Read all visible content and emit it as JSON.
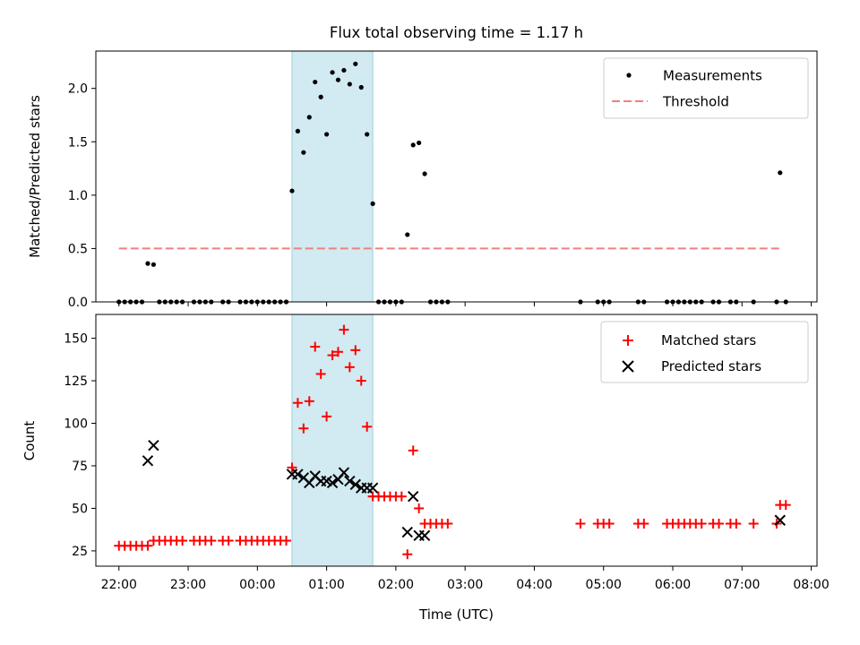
{
  "chart_data": [
    {
      "type": "scatter",
      "title": "Flux total observing time = 1.17 h",
      "ylabel": "Matched/Predicted stars",
      "xlim": [
        "21:40",
        "08:05"
      ],
      "ylim": [
        0,
        2.35
      ],
      "yticks": [
        "0.0",
        "0.5",
        "1.0",
        "1.5",
        "2.0"
      ],
      "shaded_span": {
        "start": "00:30",
        "end": "01:40",
        "color": "#add8e6"
      },
      "legend": {
        "position": "top-right",
        "entries": [
          "Measurements",
          "Threshold"
        ]
      },
      "threshold": {
        "name": "Threshold",
        "y": 0.5,
        "x_start": "22:00",
        "x_end": "07:35",
        "color": "#f08080"
      },
      "series": [
        {
          "name": "Measurements",
          "color": "#000000",
          "points": [
            [
              "22:00",
              0
            ],
            [
              "22:05",
              0
            ],
            [
              "22:10",
              0
            ],
            [
              "22:15",
              0
            ],
            [
              "22:20",
              0
            ],
            [
              "22:25",
              0.36
            ],
            [
              "22:30",
              0.35
            ],
            [
              "22:35",
              0
            ],
            [
              "22:40",
              0
            ],
            [
              "22:45",
              0
            ],
            [
              "22:50",
              0
            ],
            [
              "22:55",
              0
            ],
            [
              "23:05",
              0
            ],
            [
              "23:10",
              0
            ],
            [
              "23:15",
              0
            ],
            [
              "23:20",
              0
            ],
            [
              "23:30",
              0
            ],
            [
              "23:35",
              0
            ],
            [
              "23:45",
              0
            ],
            [
              "23:50",
              0
            ],
            [
              "23:55",
              0
            ],
            [
              "00:00",
              0
            ],
            [
              "00:05",
              0
            ],
            [
              "00:10",
              0
            ],
            [
              "00:15",
              0
            ],
            [
              "00:20",
              0
            ],
            [
              "00:25",
              0
            ],
            [
              "00:30",
              1.04
            ],
            [
              "00:35",
              1.6
            ],
            [
              "00:40",
              1.4
            ],
            [
              "00:45",
              1.73
            ],
            [
              "00:50",
              2.06
            ],
            [
              "00:55",
              1.92
            ],
            [
              "01:00",
              1.57
            ],
            [
              "01:05",
              2.15
            ],
            [
              "01:10",
              2.08
            ],
            [
              "01:15",
              2.17
            ],
            [
              "01:20",
              2.04
            ],
            [
              "01:25",
              2.23
            ],
            [
              "01:30",
              2.01
            ],
            [
              "01:35",
              1.57
            ],
            [
              "01:40",
              0.92
            ],
            [
              "01:45",
              0
            ],
            [
              "01:50",
              0
            ],
            [
              "01:55",
              0
            ],
            [
              "02:00",
              0
            ],
            [
              "02:05",
              0
            ],
            [
              "02:10",
              0.63
            ],
            [
              "02:15",
              1.47
            ],
            [
              "02:20",
              1.49
            ],
            [
              "02:25",
              1.2
            ],
            [
              "02:30",
              0
            ],
            [
              "02:35",
              0
            ],
            [
              "02:40",
              0
            ],
            [
              "02:45",
              0
            ],
            [
              "04:40",
              0
            ],
            [
              "04:55",
              0
            ],
            [
              "05:00",
              0
            ],
            [
              "05:05",
              0
            ],
            [
              "05:30",
              0
            ],
            [
              "05:35",
              0
            ],
            [
              "05:55",
              0
            ],
            [
              "06:00",
              0
            ],
            [
              "06:05",
              0
            ],
            [
              "06:10",
              0
            ],
            [
              "06:15",
              0
            ],
            [
              "06:20",
              0
            ],
            [
              "06:25",
              0
            ],
            [
              "06:35",
              0
            ],
            [
              "06:40",
              0
            ],
            [
              "06:50",
              0
            ],
            [
              "06:55",
              0
            ],
            [
              "07:10",
              0
            ],
            [
              "07:30",
              0
            ],
            [
              "07:33",
              1.21
            ],
            [
              "07:38",
              0
            ]
          ]
        }
      ]
    },
    {
      "type": "scatter",
      "xlabel": "Time (UTC)",
      "ylabel": "Count",
      "xlim": [
        "21:40",
        "08:05"
      ],
      "ylim": [
        16,
        164
      ],
      "xticks": [
        "22:00",
        "23:00",
        "00:00",
        "01:00",
        "02:00",
        "03:00",
        "04:00",
        "05:00",
        "06:00",
        "07:00",
        "08:00"
      ],
      "yticks": [
        "25",
        "50",
        "75",
        "100",
        "125",
        "150"
      ],
      "shaded_span": {
        "start": "00:30",
        "end": "01:40",
        "color": "#add8e6"
      },
      "legend": {
        "position": "top-right",
        "entries": [
          "Matched stars",
          "Predicted stars"
        ]
      },
      "series": [
        {
          "name": "Matched stars",
          "marker": "+",
          "color": "#ff0000",
          "points": [
            [
              "22:00",
              28
            ],
            [
              "22:05",
              28
            ],
            [
              "22:10",
              28
            ],
            [
              "22:15",
              28
            ],
            [
              "22:20",
              28
            ],
            [
              "22:25",
              28
            ],
            [
              "22:30",
              31
            ],
            [
              "22:35",
              31
            ],
            [
              "22:40",
              31
            ],
            [
              "22:45",
              31
            ],
            [
              "22:50",
              31
            ],
            [
              "22:55",
              31
            ],
            [
              "23:05",
              31
            ],
            [
              "23:10",
              31
            ],
            [
              "23:15",
              31
            ],
            [
              "23:20",
              31
            ],
            [
              "23:30",
              31
            ],
            [
              "23:35",
              31
            ],
            [
              "23:45",
              31
            ],
            [
              "23:50",
              31
            ],
            [
              "23:55",
              31
            ],
            [
              "00:00",
              31
            ],
            [
              "00:05",
              31
            ],
            [
              "00:10",
              31
            ],
            [
              "00:15",
              31
            ],
            [
              "00:20",
              31
            ],
            [
              "00:25",
              31
            ],
            [
              "00:30",
              74
            ],
            [
              "00:35",
              112
            ],
            [
              "00:40",
              97
            ],
            [
              "00:45",
              113
            ],
            [
              "00:50",
              145
            ],
            [
              "00:55",
              129
            ],
            [
              "01:00",
              104
            ],
            [
              "01:05",
              140
            ],
            [
              "01:10",
              142
            ],
            [
              "01:15",
              155
            ],
            [
              "01:20",
              133
            ],
            [
              "01:25",
              143
            ],
            [
              "01:30",
              125
            ],
            [
              "01:35",
              98
            ],
            [
              "01:40",
              57
            ],
            [
              "01:45",
              57
            ],
            [
              "01:50",
              57
            ],
            [
              "01:55",
              57
            ],
            [
              "02:00",
              57
            ],
            [
              "02:05",
              57
            ],
            [
              "02:10",
              23
            ],
            [
              "02:15",
              84
            ],
            [
              "02:20",
              50
            ],
            [
              "02:25",
              41
            ],
            [
              "02:30",
              41
            ],
            [
              "02:35",
              41
            ],
            [
              "02:40",
              41
            ],
            [
              "02:45",
              41
            ],
            [
              "04:40",
              41
            ],
            [
              "04:55",
              41
            ],
            [
              "05:00",
              41
            ],
            [
              "05:05",
              41
            ],
            [
              "05:30",
              41
            ],
            [
              "05:35",
              41
            ],
            [
              "05:55",
              41
            ],
            [
              "06:00",
              41
            ],
            [
              "06:05",
              41
            ],
            [
              "06:10",
              41
            ],
            [
              "06:15",
              41
            ],
            [
              "06:20",
              41
            ],
            [
              "06:25",
              41
            ],
            [
              "06:35",
              41
            ],
            [
              "06:40",
              41
            ],
            [
              "06:50",
              41
            ],
            [
              "06:55",
              41
            ],
            [
              "07:10",
              41
            ],
            [
              "07:30",
              41
            ],
            [
              "07:33",
              52
            ],
            [
              "07:38",
              52
            ]
          ]
        },
        {
          "name": "Predicted stars",
          "marker": "x",
          "color": "#000000",
          "points": [
            [
              "22:25",
              78
            ],
            [
              "22:30",
              87
            ],
            [
              "00:30",
              70
            ],
            [
              "00:35",
              70
            ],
            [
              "00:40",
              68
            ],
            [
              "00:45",
              65
            ],
            [
              "00:50",
              69
            ],
            [
              "00:55",
              66
            ],
            [
              "01:00",
              66
            ],
            [
              "01:05",
              65
            ],
            [
              "01:10",
              67
            ],
            [
              "01:15",
              71
            ],
            [
              "01:20",
              66
            ],
            [
              "01:25",
              64
            ],
            [
              "01:30",
              62
            ],
            [
              "01:35",
              62
            ],
            [
              "01:40",
              62
            ],
            [
              "02:10",
              36
            ],
            [
              "02:15",
              57
            ],
            [
              "02:20",
              34
            ],
            [
              "02:25",
              34
            ],
            [
              "07:33",
              43
            ]
          ]
        }
      ]
    }
  ]
}
